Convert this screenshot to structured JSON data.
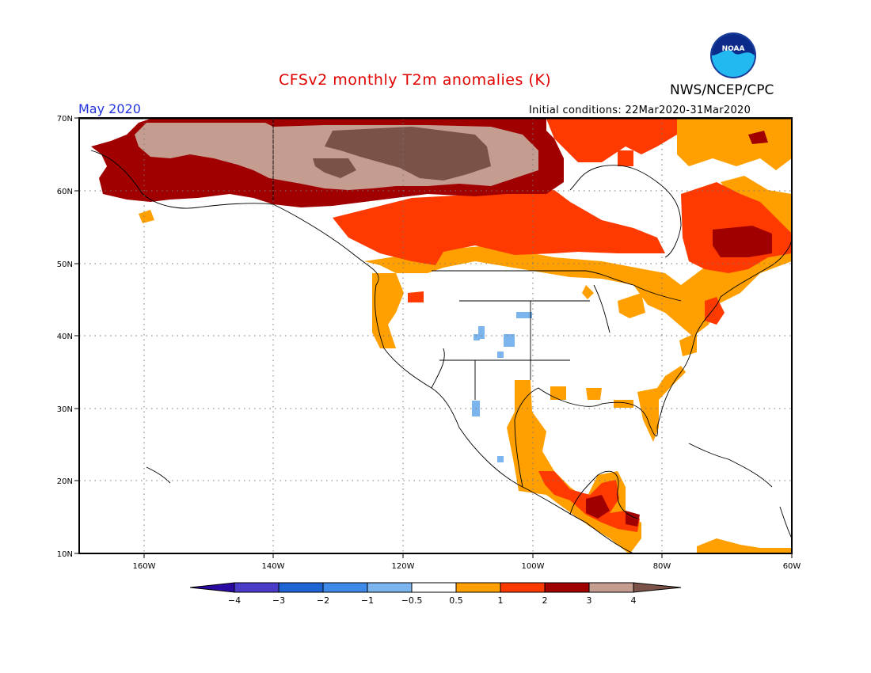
{
  "title": "CFSv2 monthly T2m anomalies (K)",
  "organization": "NWS/NCEP/CPC",
  "logo_text": "NOAA",
  "month": "May 2020",
  "initial_conditions": "Initial conditions: 22Mar2020-31Mar2020",
  "lat_labels": [
    "70N",
    "60N",
    "50N",
    "40N",
    "30N",
    "20N",
    "10N"
  ],
  "lon_labels": [
    "160W",
    "140W",
    "120W",
    "100W",
    "80W",
    "60W"
  ],
  "colorbar": {
    "labels": [
      "−4",
      "−3",
      "−2",
      "−1",
      "−0.5",
      "0.5",
      "1",
      "2",
      "3",
      "4"
    ],
    "colors": [
      "#2a0aa0",
      "#4a3cc8",
      "#1f64d4",
      "#3f8ae8",
      "#7cb4ee",
      "#ffffff",
      "#ffa000",
      "#ff3a00",
      "#a00000",
      "#c49c90",
      "#7a5248"
    ]
  },
  "colors": {
    "weak_warm": "#ffa000",
    "warm": "#ff3a00",
    "hot": "#a00000",
    "very_hot": "#c49c90",
    "extreme": "#7a5248",
    "weak_cool": "#7cb4ee"
  }
}
